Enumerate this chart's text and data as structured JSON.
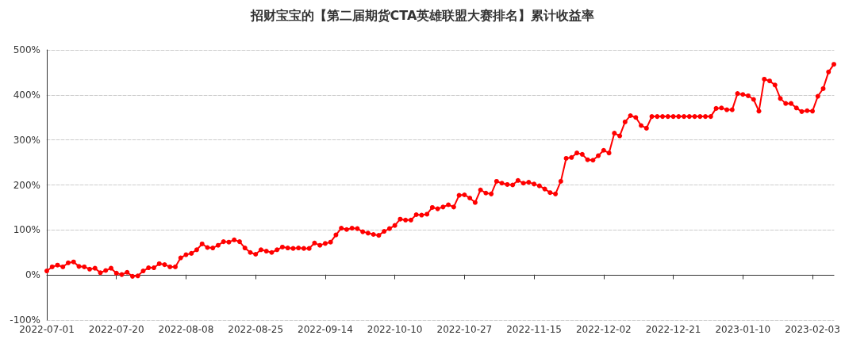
{
  "chart_data": {
    "type": "line",
    "title": "招财宝宝的【第二届期货CTA英雄联盟大赛排名】累计收益率",
    "categories": [
      "2022-07-01",
      null,
      null,
      null,
      null,
      null,
      null,
      null,
      null,
      null,
      null,
      null,
      null,
      "2022-07-20",
      null,
      null,
      null,
      null,
      null,
      null,
      null,
      null,
      null,
      null,
      null,
      null,
      "2022-08-08",
      null,
      null,
      null,
      null,
      null,
      null,
      null,
      null,
      null,
      null,
      null,
      null,
      "2022-08-25",
      null,
      null,
      null,
      null,
      null,
      null,
      null,
      null,
      null,
      null,
      null,
      null,
      "2022-09-14",
      null,
      null,
      null,
      null,
      null,
      null,
      null,
      null,
      null,
      null,
      null,
      null,
      "2022-10-10",
      null,
      null,
      null,
      null,
      null,
      null,
      null,
      null,
      null,
      null,
      null,
      null,
      "2022-10-27",
      null,
      null,
      null,
      null,
      null,
      null,
      null,
      null,
      null,
      null,
      null,
      null,
      "2022-11-15",
      null,
      null,
      null,
      null,
      null,
      null,
      null,
      null,
      null,
      null,
      null,
      null,
      "2022-12-02",
      null,
      null,
      null,
      null,
      null,
      null,
      null,
      null,
      null,
      null,
      null,
      null,
      "2022-12-21",
      null,
      null,
      null,
      null,
      null,
      null,
      null,
      null,
      null,
      null,
      null,
      null,
      "2023-01-10",
      null,
      null,
      null,
      null,
      null,
      null,
      null,
      null,
      null,
      null,
      null,
      null,
      "2023-02-03",
      null,
      null,
      null,
      null
    ],
    "series": [
      {
        "color": "#ff0000",
        "values": [
          9,
          18,
          22,
          18,
          27,
          29,
          19,
          18,
          13,
          15,
          5,
          10,
          15,
          4,
          1,
          6,
          -3,
          -2,
          9,
          16,
          16,
          25,
          23,
          18,
          18,
          38,
          45,
          48,
          56,
          69,
          61,
          60,
          66,
          74,
          73,
          78,
          74,
          60,
          50,
          46,
          56,
          53,
          50,
          56,
          62,
          60,
          59,
          60,
          59,
          59,
          71,
          66,
          70,
          73,
          89,
          104,
          101,
          104,
          103,
          96,
          93,
          90,
          88,
          97,
          103,
          110,
          124,
          122,
          122,
          134,
          133,
          135,
          150,
          147,
          151,
          156,
          151,
          177,
          178,
          171,
          161,
          189,
          182,
          180,
          208,
          204,
          201,
          200,
          210,
          204,
          206,
          202,
          198,
          191,
          183,
          180,
          208,
          259,
          261,
          271,
          268,
          256,
          255,
          265,
          277,
          271,
          315,
          309,
          340,
          354,
          350,
          332,
          326,
          352,
          352,
          352,
          352,
          352,
          352,
          352,
          352,
          352,
          352,
          352,
          352,
          370,
          371,
          367,
          367,
          403,
          401,
          398,
          390,
          364,
          435,
          431,
          422,
          392,
          381,
          381,
          371,
          363,
          365,
          364,
          397,
          414,
          451,
          468
        ]
      }
    ],
    "ylim": [
      -100,
      500
    ],
    "yticks": [
      {
        "value": -100,
        "label": "-100%"
      },
      {
        "value": 0,
        "label": "0%"
      },
      {
        "value": 100,
        "label": "100%"
      },
      {
        "value": 200,
        "label": "200%"
      },
      {
        "value": 300,
        "label": "300%"
      },
      {
        "value": 400,
        "label": "400%"
      },
      {
        "value": 500,
        "label": "500%"
      }
    ],
    "grid": "y",
    "marker": "circle",
    "line_style": "solid"
  }
}
